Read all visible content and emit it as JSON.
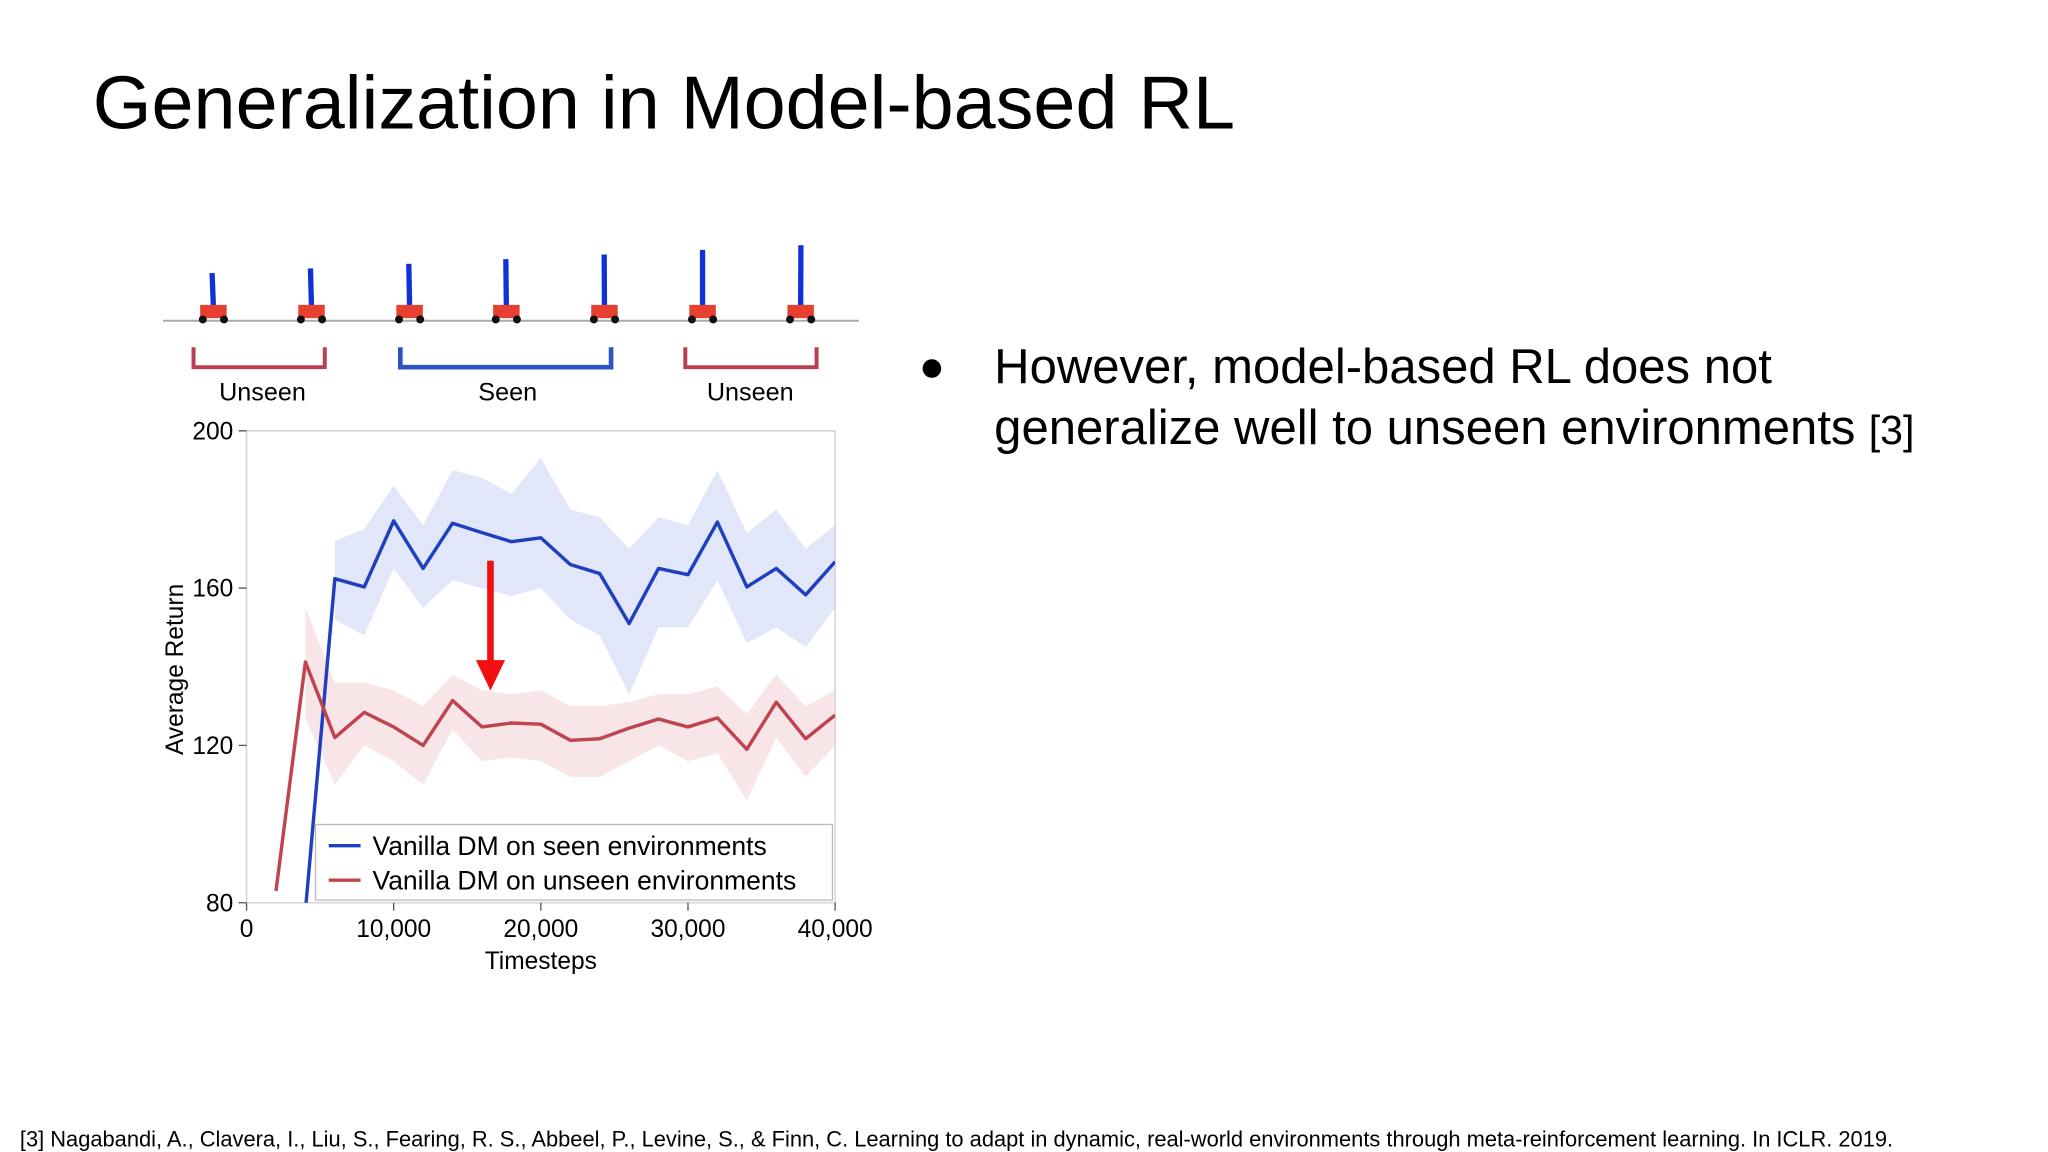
{
  "title": "Generalization in Model-based RL",
  "bullet": {
    "lines": [
      "However, model-based RL does not",
      "generalize well to unseen environments"
    ],
    "citation": "[3]"
  },
  "footnote": "[3] Nagabandi, A., Clavera, I., Liu, S., Fearing, R. S., Abbeel, P., Levine, S., & Finn, C. Learning to adapt in dynamic, real-world environments through meta-reinforcement learning. In ICLR. 2019.",
  "chart_data": {
    "type": "line",
    "groups": [
      "Unseen",
      "Seen",
      "Unseen"
    ],
    "xlabel": "Timesteps",
    "ylabel": "Average Return",
    "xlim": [
      0,
      40000
    ],
    "ylim": [
      80,
      200
    ],
    "xticks": [
      0,
      {
        "value": 10000,
        "label": "10,000"
      },
      {
        "value": 20000,
        "label": "20,000"
      },
      {
        "value": 30000,
        "label": "30,000"
      },
      {
        "value": 40000,
        "label": "40,000"
      }
    ],
    "yticks": [
      80,
      120,
      160,
      200
    ],
    "legend": "lower-left",
    "x": [
      2000,
      4000,
      6000,
      8000,
      10000,
      12000,
      14000,
      16000,
      18000,
      20000,
      22000,
      24000,
      26000,
      28000,
      30000,
      32000,
      34000,
      36000,
      38000,
      40000
    ],
    "series": [
      {
        "name": "Vanilla DM on seen environments",
        "color": "#1f3fbf",
        "band_color": "#c9d2f2",
        "values": [
          null,
          78,
          162.4,
          160.3,
          177.1,
          165,
          176.5,
          174.1,
          171.8,
          172.8,
          166,
          163.7,
          151,
          165,
          163.4,
          176.8,
          160.3,
          165,
          158.3,
          166.7
        ],
        "upper": [
          null,
          null,
          172,
          175,
          186,
          176,
          190,
          188,
          184,
          193,
          180,
          178,
          170,
          178,
          176,
          190,
          174,
          180,
          170,
          176
        ],
        "lower": [
          null,
          null,
          152,
          148,
          165,
          155,
          162,
          160,
          158,
          160,
          152,
          148,
          133,
          150,
          150,
          162,
          146,
          150,
          145,
          155
        ]
      },
      {
        "name": "Vanilla DM on unseen environments",
        "color": "#c0444f",
        "band_color": "#f2cfd3",
        "values": [
          83,
          141.2,
          122,
          128.4,
          124.7,
          120,
          131.4,
          124.7,
          125.7,
          125.4,
          121.3,
          121.7,
          124.4,
          126.7,
          124.7,
          127,
          119,
          131,
          121.7,
          127.7
        ],
        "upper": [
          null,
          155,
          136,
          136,
          134,
          130,
          138,
          134,
          133,
          134,
          130,
          130,
          131,
          133,
          133,
          135,
          128,
          138,
          130,
          134
        ],
        "lower": [
          null,
          127,
          110,
          120,
          116,
          110,
          124,
          116,
          117,
          116,
          112,
          112,
          116,
          120,
          116,
          118,
          106,
          122,
          112,
          120
        ]
      }
    ]
  }
}
